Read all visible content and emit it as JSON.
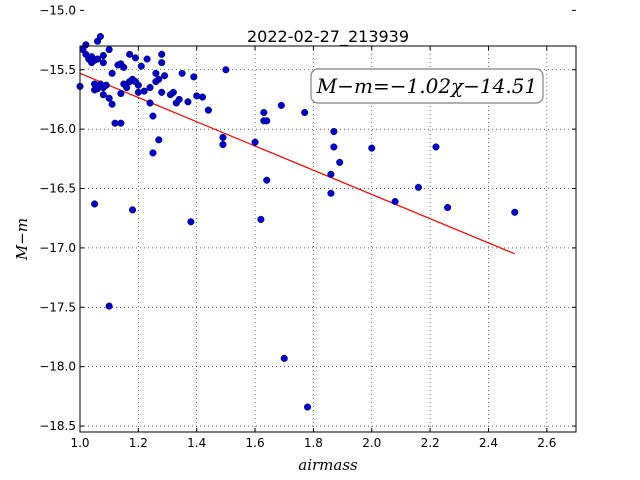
{
  "chart_data": {
    "type": "scatter",
    "title": "2022-02-27_213939",
    "xlabel": "airmass",
    "ylabel": "M−m",
    "xlim": [
      1.0,
      2.7
    ],
    "ylim": [
      -15.3,
      -18.55
    ],
    "y_inverted": true,
    "xticks": [
      1.0,
      1.2,
      1.4,
      1.6,
      1.8,
      2.0,
      2.2,
      2.4,
      2.6
    ],
    "xtick_labels": [
      "1.0",
      "1.2",
      "1.4",
      "1.6",
      "1.8",
      "2.0",
      "2.2",
      "2.4",
      "2.6"
    ],
    "yticks": [
      -15.0,
      -15.5,
      -16.0,
      -16.5,
      -17.0,
      -17.5,
      -18.0,
      -18.5
    ],
    "ytick_labels": [
      "−15.0",
      "−15.5",
      "−16.0",
      "−16.5",
      "−17.0",
      "−17.5",
      "−18.0",
      "−18.5"
    ],
    "grid": true,
    "annotation": "M−m=−1.02χ−14.51",
    "fit_line": {
      "slope": -1.02,
      "intercept": -14.51,
      "x_start": 1.0,
      "x_end": 2.49,
      "color": "#ff0000"
    },
    "point_color": "#0000cc",
    "points": [
      [
        1.0,
        -15.64
      ],
      [
        1.01,
        -15.33
      ],
      [
        1.02,
        -15.29
      ],
      [
        1.02,
        -15.37
      ],
      [
        1.03,
        -15.41
      ],
      [
        1.04,
        -15.44
      ],
      [
        1.04,
        -15.39
      ],
      [
        1.05,
        -15.62
      ],
      [
        1.05,
        -15.67
      ],
      [
        1.05,
        -15.42
      ],
      [
        1.05,
        -16.63
      ],
      [
        1.06,
        -15.26
      ],
      [
        1.06,
        -15.41
      ],
      [
        1.06,
        -15.66
      ],
      [
        1.07,
        -15.22
      ],
      [
        1.07,
        -15.62
      ],
      [
        1.08,
        -15.44
      ],
      [
        1.08,
        -15.38
      ],
      [
        1.08,
        -15.65
      ],
      [
        1.08,
        -15.71
      ],
      [
        1.09,
        -15.63
      ],
      [
        1.1,
        -15.74
      ],
      [
        1.1,
        -15.33
      ],
      [
        1.1,
        -17.49
      ],
      [
        1.11,
        -15.53
      ],
      [
        1.11,
        -15.79
      ],
      [
        1.12,
        -15.95
      ],
      [
        1.13,
        -15.46
      ],
      [
        1.14,
        -15.45
      ],
      [
        1.14,
        -15.7
      ],
      [
        1.14,
        -15.95
      ],
      [
        1.15,
        -15.48
      ],
      [
        1.15,
        -15.62
      ],
      [
        1.16,
        -15.65
      ],
      [
        1.17,
        -15.37
      ],
      [
        1.17,
        -15.6
      ],
      [
        1.18,
        -15.58
      ],
      [
        1.18,
        -16.68
      ],
      [
        1.19,
        -15.4
      ],
      [
        1.19,
        -15.6
      ],
      [
        1.2,
        -15.63
      ],
      [
        1.2,
        -15.69
      ],
      [
        1.21,
        -15.47
      ],
      [
        1.22,
        -15.68
      ],
      [
        1.23,
        -15.41
      ],
      [
        1.24,
        -15.65
      ],
      [
        1.24,
        -15.78
      ],
      [
        1.25,
        -16.2
      ],
      [
        1.25,
        -15.89
      ],
      [
        1.26,
        -15.53
      ],
      [
        1.26,
        -15.6
      ],
      [
        1.27,
        -16.09
      ],
      [
        1.27,
        -15.58
      ],
      [
        1.28,
        -15.69
      ],
      [
        1.28,
        -15.44
      ],
      [
        1.28,
        -15.37
      ],
      [
        1.29,
        -15.55
      ],
      [
        1.31,
        -15.71
      ],
      [
        1.32,
        -15.69
      ],
      [
        1.33,
        -15.78
      ],
      [
        1.34,
        -15.75
      ],
      [
        1.35,
        -15.53
      ],
      [
        1.37,
        -15.77
      ],
      [
        1.38,
        -16.78
      ],
      [
        1.39,
        -15.56
      ],
      [
        1.4,
        -15.72
      ],
      [
        1.42,
        -15.73
      ],
      [
        1.44,
        -15.84
      ],
      [
        1.49,
        -16.07
      ],
      [
        1.49,
        -16.13
      ],
      [
        1.5,
        -15.5
      ],
      [
        1.6,
        -16.11
      ],
      [
        1.62,
        -16.76
      ],
      [
        1.63,
        -15.86
      ],
      [
        1.63,
        -15.93
      ],
      [
        1.64,
        -15.93
      ],
      [
        1.64,
        -16.43
      ],
      [
        1.69,
        -15.8
      ],
      [
        1.7,
        -17.93
      ],
      [
        1.77,
        -15.86
      ],
      [
        1.78,
        -18.34
      ],
      [
        1.86,
        -16.54
      ],
      [
        1.86,
        -16.38
      ],
      [
        1.87,
        -16.15
      ],
      [
        1.87,
        -16.02
      ],
      [
        1.89,
        -16.28
      ],
      [
        2.0,
        -16.16
      ],
      [
        2.08,
        -16.61
      ],
      [
        2.16,
        -16.49
      ],
      [
        2.22,
        -16.15
      ],
      [
        2.26,
        -16.66
      ],
      [
        2.49,
        -16.7
      ]
    ]
  }
}
